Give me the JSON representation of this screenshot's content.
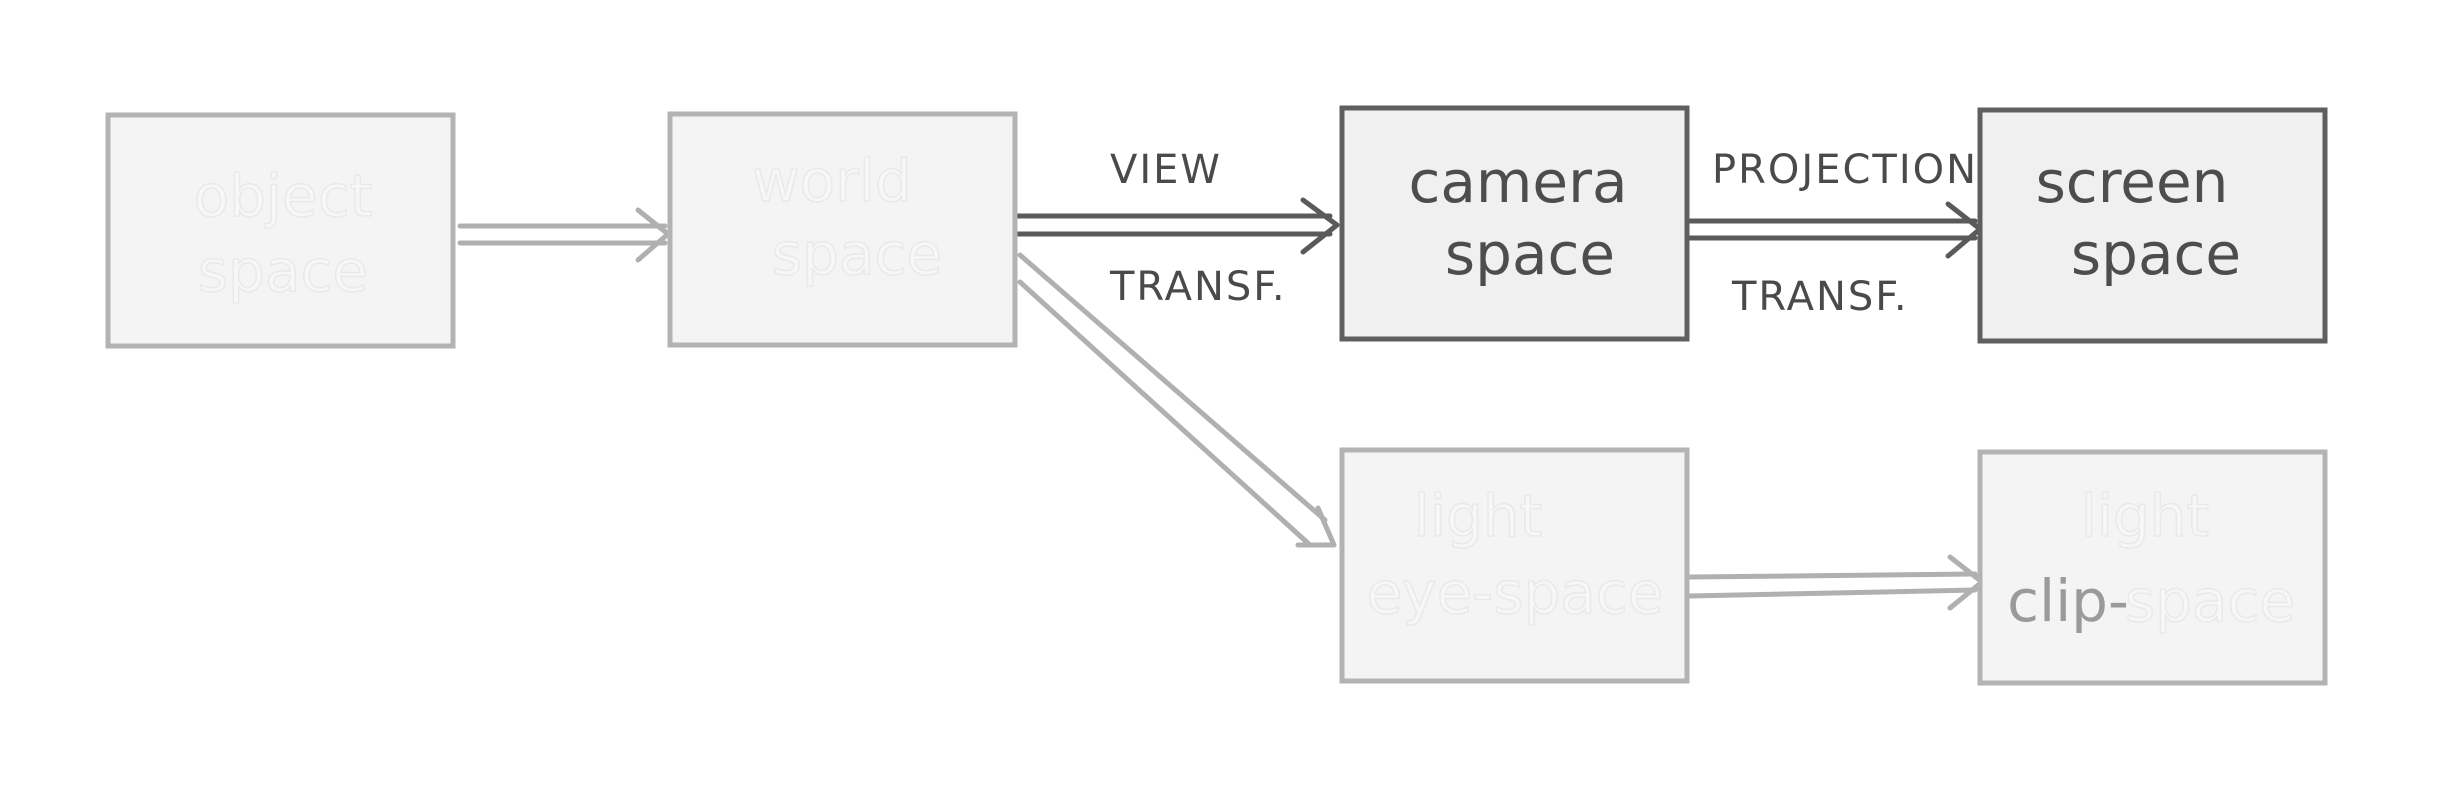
{
  "nodes": {
    "object_space": {
      "line1": "object",
      "line2": "space"
    },
    "world_space": {
      "line1": "world",
      "line2": "space"
    },
    "camera_space": {
      "line1": "camera",
      "line2": "space"
    },
    "screen_space": {
      "line1": "screen",
      "line2": "space"
    },
    "light_eye_space": {
      "line1": "light",
      "line2": "eye-space"
    },
    "light_clip_space": {
      "line1": "light",
      "line2_a": "clip-",
      "line2_b": "space"
    }
  },
  "edges": {
    "view_transform": {
      "top": "VIEW",
      "bottom": "TRANSF."
    },
    "projection_transform": {
      "top": "PROJECTION",
      "bottom": "TRANSF."
    }
  },
  "colors": {
    "active_stroke": "#5f5f5f",
    "faded_stroke": "#b3b3b3",
    "active_text": "#4d4d4d"
  }
}
